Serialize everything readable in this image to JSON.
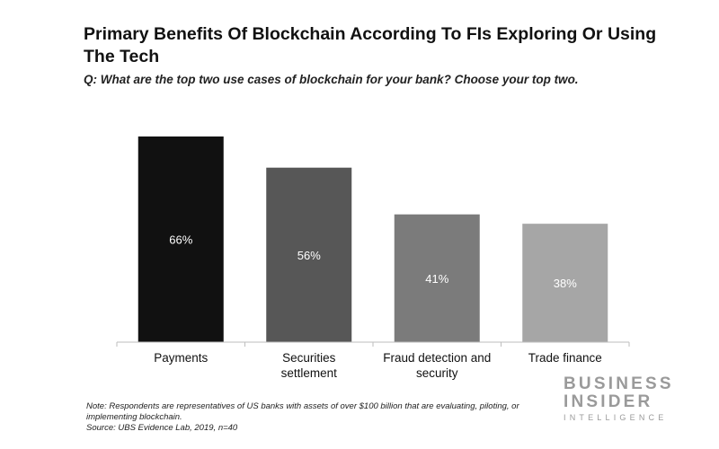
{
  "chart_data": {
    "type": "bar",
    "title": "Primary Benefits Of Blockchain According To FIs Exploring Or Using The Tech",
    "subtitle": "Q: What are the top two use cases of blockchain for your bank? Choose your top two.",
    "categories": [
      [
        "Payments"
      ],
      [
        "Securities",
        "settlement"
      ],
      [
        "Fraud detection and",
        "security"
      ],
      [
        "Trade finance"
      ]
    ],
    "values": [
      66,
      56,
      41,
      38
    ],
    "value_labels": [
      "66%",
      "56%",
      "41%",
      "38%"
    ],
    "bar_colors": [
      "#111111",
      "#575757",
      "#7b7b7b",
      "#a6a6a6"
    ],
    "value_label_color": "#ffffff",
    "ylim": [
      0,
      70
    ],
    "grid": false,
    "legend": "none"
  },
  "notes": {
    "line1": "Note: Respondents are representatives of US banks with assets of over $100 billion that are evaluating, piloting, or",
    "line2": "implementing blockchain.",
    "line3": "Source: UBS Evidence Lab, 2019, n=40"
  },
  "brand": {
    "line1": "BUSINESS",
    "line2": "INSIDER",
    "line3": "INTELLIGENCE",
    "color": "#9a9a9a"
  }
}
